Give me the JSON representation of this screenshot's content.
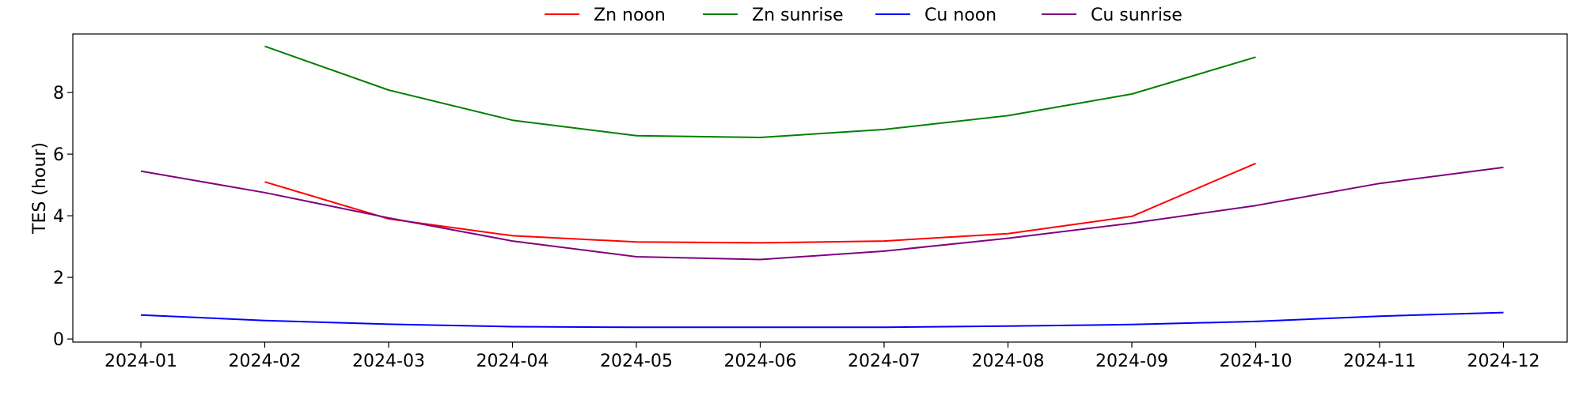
{
  "chart_data": {
    "type": "line",
    "title": "",
    "xlabel": "",
    "ylabel": "TES (hour)",
    "x": [
      "2024-01",
      "2024-02",
      "2024-03",
      "2024-04",
      "2024-05",
      "2024-06",
      "2024-07",
      "2024-08",
      "2024-09",
      "2024-10",
      "2024-11",
      "2024-12"
    ],
    "ylim": [
      -0.1,
      9.9
    ],
    "yticks": [
      0,
      2,
      4,
      6,
      8
    ],
    "grid": false,
    "legend_position": "top-center",
    "series": [
      {
        "name": "Zn noon",
        "color": "#ff0000",
        "values": [
          null,
          5.1,
          3.9,
          3.35,
          3.15,
          3.12,
          3.18,
          3.42,
          3.98,
          5.7,
          null,
          null
        ]
      },
      {
        "name": "Zn sunrise",
        "color": "#008000",
        "values": [
          null,
          9.5,
          8.08,
          7.1,
          6.6,
          6.54,
          6.8,
          7.25,
          7.95,
          9.15,
          null,
          null
        ]
      },
      {
        "name": "Cu noon",
        "color": "#0000ff",
        "values": [
          0.78,
          0.6,
          0.48,
          0.4,
          0.38,
          0.38,
          0.38,
          0.42,
          0.47,
          0.57,
          0.74,
          0.86
        ]
      },
      {
        "name": "Cu sunrise",
        "color": "#800080",
        "values": [
          5.45,
          4.75,
          3.93,
          3.18,
          2.67,
          2.58,
          2.85,
          3.27,
          3.76,
          4.33,
          5.05,
          5.57
        ]
      }
    ]
  }
}
